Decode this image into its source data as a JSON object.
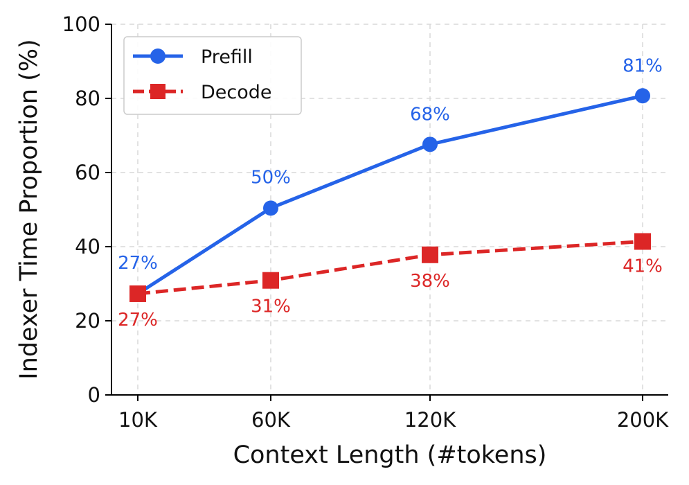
{
  "chart_data": {
    "type": "line",
    "categories": [
      "10K",
      "60K",
      "120K",
      "200K"
    ],
    "x": [
      10,
      60,
      120,
      200
    ],
    "xlabel": "Context Length (#tokens)",
    "ylabel": "Indexer Time Proportion (%)",
    "ylim": [
      0,
      100
    ],
    "yticks": [
      "0",
      "20",
      "40",
      "60",
      "80",
      "100"
    ],
    "grid": true,
    "legend_position": "top-left",
    "series": [
      {
        "name": "Prefill",
        "values": [
          27.3,
          50.4,
          67.6,
          80.7
        ],
        "labels": [
          "27%",
          "50%",
          "68%",
          "81%"
        ],
        "color": "#2563e8",
        "marker": "circle",
        "linestyle": "solid"
      },
      {
        "name": "Decode",
        "values": [
          27.3,
          30.9,
          37.8,
          41.4
        ],
        "labels": [
          "27%",
          "31%",
          "38%",
          "41%"
        ],
        "color": "#dc2626",
        "marker": "square",
        "linestyle": "dashed"
      }
    ]
  }
}
